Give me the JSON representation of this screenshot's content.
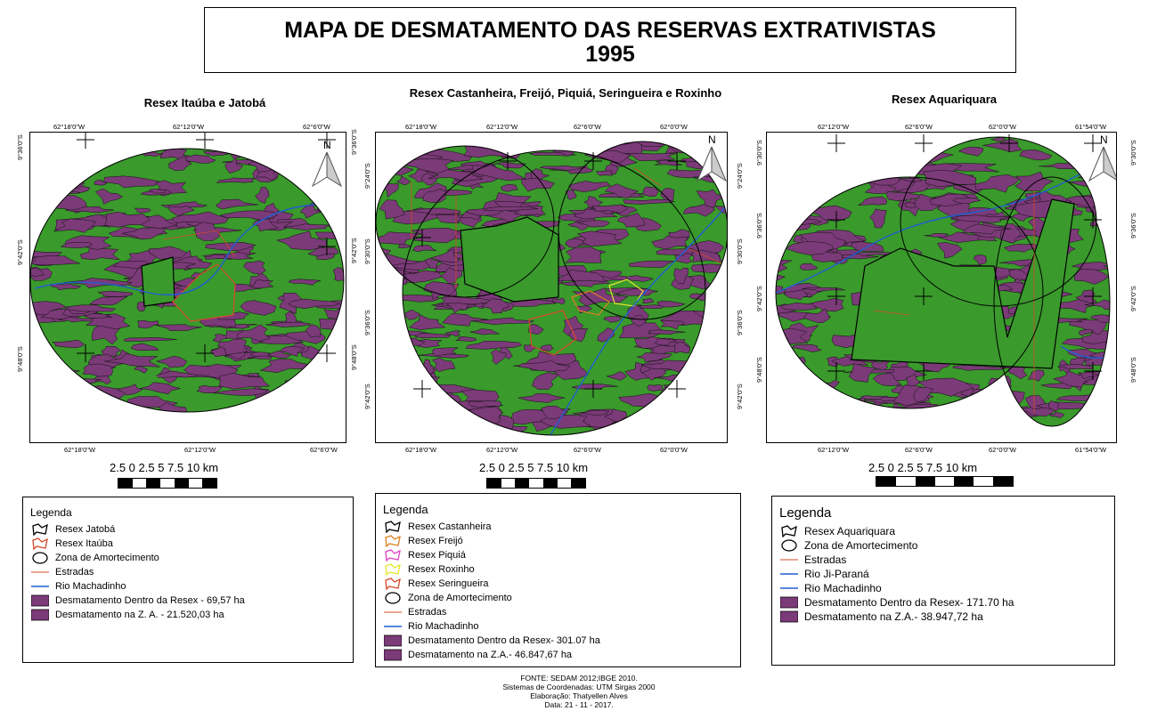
{
  "title": {
    "line1": "MAPA DE DESMATAMENTO DAS RESERVAS EXTRATIVISTAS",
    "line2": "1995"
  },
  "colors": {
    "forest": "#3a9a2c",
    "deforest": "#7b3a78",
    "river": "#1f5fd0",
    "road": "#d9482a",
    "frame": "#000000"
  },
  "panels": [
    {
      "title": "Resex Itaúba e Jatobá",
      "top_coords": [
        "62°18'0\"W",
        "62°12'0\"W",
        "62°6'0\"W"
      ],
      "bottom_coords": [
        "62°18'0\"W",
        "62°12'0\"W",
        "62°6'0\"W"
      ],
      "left_coords": [
        "9°36'0\"S",
        "9°42'0\"S",
        "9°48'0\"S"
      ],
      "scale": "2.5   0   2.5   5   7.5  10 km",
      "legend": {
        "title": "Legenda",
        "items": [
          {
            "label": "Resex Jatobá",
            "symbol": "outline-black"
          },
          {
            "label": "Resex Itaúba",
            "symbol": "outline-red"
          },
          {
            "label": "Zona de Amortecimento",
            "symbol": "circle-black"
          },
          {
            "label": "Estradas",
            "symbol": "line-road"
          },
          {
            "label": "Rio Machadinho",
            "symbol": "line-river"
          },
          {
            "label": "Desmatamento Dentro da Resex - 69,57 ha",
            "symbol": "fill-deforest"
          },
          {
            "label": "Desmatamento na Z. A. - 21.520,03 ha",
            "symbol": "fill-deforest"
          }
        ]
      }
    },
    {
      "title": "Resex Castanheira, Freijó, Piquiá, Seringueira e Roxinho",
      "top_coords": [
        "62°18'0\"W",
        "62°12'0\"W",
        "62°6'0\"W",
        "62°0'0\"W"
      ],
      "bottom_coords": [
        "62°18'0\"W",
        "62°12'0\"W",
        "62°6'0\"W",
        "62°0'0\"W"
      ],
      "left_coords": [
        "9°24'0\"S",
        "9°30'0\"S",
        "9°36'0\"S",
        "9°42'0\"S"
      ],
      "right_coords": [
        "9°24'0\"S",
        "9°30'0\"S",
        "9°36'0\"S",
        "9°42'0\"S"
      ],
      "scale": "2.5   0   2.5   5   7.5  10 km",
      "legend": {
        "title": "Legenda",
        "items": [
          {
            "label": "Resex Castanheira",
            "symbol": "outline-black"
          },
          {
            "label": "Resex Freijó",
            "symbol": "outline-orange"
          },
          {
            "label": "Resex Piquiá",
            "symbol": "outline-pink"
          },
          {
            "label": "Resex Roxinho",
            "symbol": "outline-yellow"
          },
          {
            "label": "Resex Seringueira",
            "symbol": "outline-red"
          },
          {
            "label": "Zona de Amortecimento",
            "symbol": "circle-black"
          },
          {
            "label": "Estradas",
            "symbol": "line-road"
          },
          {
            "label": "Rio Machadinho",
            "symbol": "line-river"
          },
          {
            "label": "Desmatamento Dentro da Resex- 301.07 ha",
            "symbol": "fill-deforest"
          },
          {
            "label": "Desmatamento na Z.A.- 46.847,67 ha",
            "symbol": "fill-deforest"
          }
        ]
      }
    },
    {
      "title": "Resex Aquariquara",
      "top_coords": [
        "62°12'0\"W",
        "62°6'0\"W",
        "62°0'0\"W",
        "61°54'0\"W"
      ],
      "bottom_coords": [
        "62°12'0\"W",
        "62°6'0\"W",
        "62°0'0\"W",
        "61°54'0\"W"
      ],
      "left_coords": [
        "9°30'0\"S",
        "9°36'0\"S",
        "9°42'0\"S",
        "9°48'0\"S"
      ],
      "right_coords": [
        "9°30'0\"S",
        "9°36'0\"S",
        "9°42'0\"S",
        "9°48'0\"S"
      ],
      "scale": "2.5   0   2.5   5   7.5  10 km",
      "legend": {
        "title": "Legenda",
        "items": [
          {
            "label": "Resex Aquariquara",
            "symbol": "outline-black"
          },
          {
            "label": "Zona de Amortecimento",
            "symbol": "circle-black"
          },
          {
            "label": "Estradas",
            "symbol": "line-road"
          },
          {
            "label": "Rio Ji-Paraná",
            "symbol": "line-river"
          },
          {
            "label": "Rio Machadinho",
            "symbol": "line-river"
          },
          {
            "label": "Desmatamento Dentro da Resex- 171.70 ha",
            "symbol": "fill-deforest"
          },
          {
            "label": "Desmatamento na Z.A.- 38.947,72 ha",
            "symbol": "fill-deforest"
          }
        ]
      }
    }
  ],
  "north_label": "N",
  "footer": {
    "source": "FONTE:  SEDAM 2012;IBGE 2010.",
    "crs": "Sistemas de Coordenadas: UTM Sirgas 2000",
    "author": "Elaboração: Thatyellen Alves",
    "date": "Data: 21 - 11 - 2017."
  }
}
